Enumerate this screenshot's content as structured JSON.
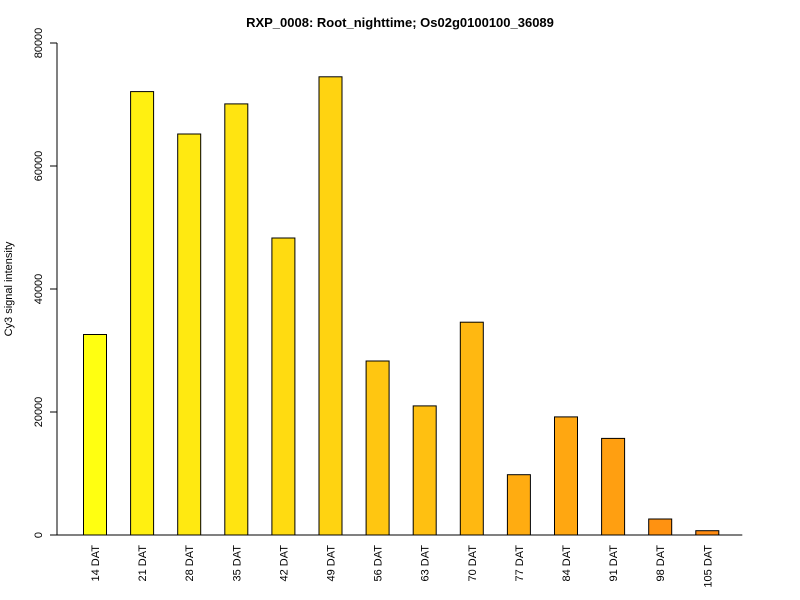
{
  "chart_data": {
    "type": "bar",
    "title": "RXP_0008: Root_nighttime; Os02g0100100_36089",
    "xlabel": "",
    "ylabel": "Cy3 signal intensity",
    "ylim": [
      0,
      80000
    ],
    "yticks": [
      0,
      20000,
      40000,
      60000,
      80000
    ],
    "categories": [
      "14 DAT",
      "21 DAT",
      "28 DAT",
      "35 DAT",
      "42 DAT",
      "49 DAT",
      "56 DAT",
      "63 DAT",
      "70 DAT",
      "77 DAT",
      "84 DAT",
      "91 DAT",
      "98 DAT",
      "105 DAT"
    ],
    "values": [
      32600,
      72100,
      65200,
      70100,
      48300,
      74500,
      28300,
      21000,
      34600,
      9800,
      19200,
      15700,
      2600,
      700
    ],
    "colors": [
      "#ffff11",
      "#fff011",
      "#ffe911",
      "#ffe411",
      "#ffdb11",
      "#ffd311",
      "#ffc611",
      "#ffc011",
      "#ffb811",
      "#ffac11",
      "#ffa711",
      "#ff9f11",
      "#ff9211",
      "#ff8b11"
    ],
    "grid": false,
    "legend": "none"
  }
}
